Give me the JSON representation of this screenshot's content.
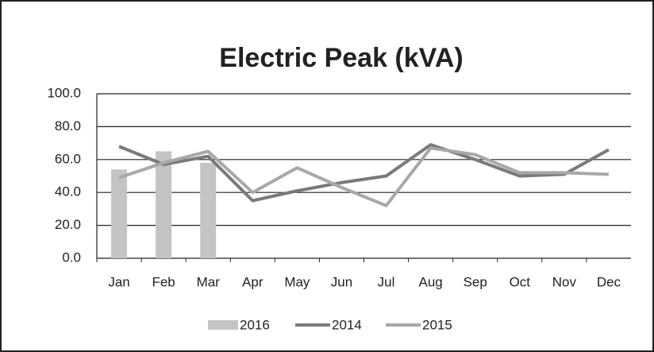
{
  "chart_data": {
    "type": "bar+line",
    "title": "Electric Peak (kVA)",
    "categories": [
      "Jan",
      "Feb",
      "Mar",
      "Apr",
      "May",
      "Jun",
      "Jul",
      "Aug",
      "Sep",
      "Oct",
      "Nov",
      "Dec"
    ],
    "series": [
      {
        "name": "2016",
        "type": "bar",
        "color": "#c4c4c4",
        "values": [
          54,
          65,
          58,
          null,
          null,
          null,
          null,
          null,
          null,
          null,
          null,
          null
        ]
      },
      {
        "name": "2014",
        "type": "line",
        "color": "#7a7a7a",
        "values": [
          68,
          57,
          62,
          35,
          41,
          46,
          50,
          69,
          60,
          50,
          51,
          66
        ]
      },
      {
        "name": "2015",
        "type": "line",
        "color": "#a8a8a8",
        "values": [
          49,
          58,
          65,
          40,
          55,
          43,
          32,
          67,
          63,
          52,
          52,
          51
        ]
      }
    ],
    "ylim": [
      0,
      100
    ],
    "yticks": [
      {
        "value": 0,
        "label": "0.0"
      },
      {
        "value": 20,
        "label": "20.0"
      },
      {
        "value": 40,
        "label": "40.0"
      },
      {
        "value": 60,
        "label": "60.0"
      },
      {
        "value": 80,
        "label": "80.0"
      },
      {
        "value": 100,
        "label": "100.0"
      }
    ],
    "grid": true
  }
}
